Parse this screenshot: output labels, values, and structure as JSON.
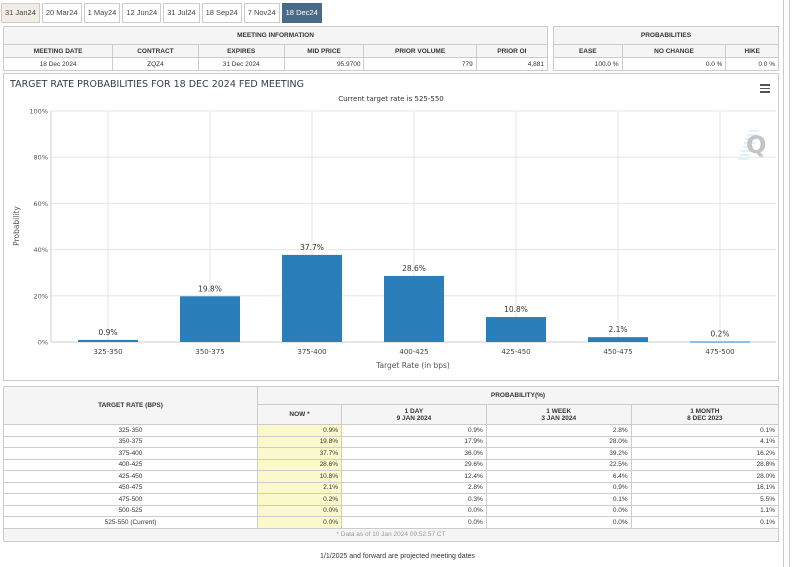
{
  "tabs": [
    "31 Jan24",
    "20 Mar24",
    "1 May24",
    "12 Jun24",
    "31 Jul24",
    "18 Sep24",
    "7 Nov24",
    "18 Dec24"
  ],
  "active_tab": "18 Dec24",
  "meeting_info": {
    "header": "MEETING INFORMATION",
    "columns": [
      "MEETING DATE",
      "CONTRACT",
      "EXPIRES",
      "MID PRICE",
      "PRIOR VOLUME",
      "PRIOR OI"
    ],
    "values": [
      "18 Dec 2024",
      "ZQZ4",
      "31 Dec 2024",
      "95.9700",
      "779",
      "4,881"
    ]
  },
  "probabilities": {
    "header": "PROBABILITIES",
    "columns": [
      "EASE",
      "NO CHANGE",
      "HIKE"
    ],
    "values": [
      "100.0 %",
      "0.0 %",
      "0.0 %"
    ]
  },
  "chart_data": {
    "type": "bar",
    "title": "TARGET RATE PROBABILITIES FOR 18 DEC 2024 FED MEETING",
    "subtitle": "Current target rate is 525-550",
    "xlabel": "Target Rate (in bps)",
    "ylabel": "Probability",
    "categories": [
      "325-350",
      "350-375",
      "375-400",
      "400-425",
      "425-450",
      "450-475",
      "475-500"
    ],
    "values": [
      0.9,
      19.8,
      37.7,
      28.6,
      10.8,
      2.1,
      0.2
    ],
    "data_labels": [
      "0.9%",
      "19.8%",
      "37.7%",
      "28.6%",
      "10.8%",
      "2.1%",
      "0.2%"
    ],
    "yticks": [
      "0%",
      "20%",
      "40%",
      "60%",
      "80%",
      "100%"
    ],
    "ylim": [
      0,
      100
    ],
    "grid": true,
    "bar_color": "#2a7fba"
  },
  "prob_table": {
    "rate_header": "TARGET RATE (BPS)",
    "group_header": "PROBABILITY(%)",
    "columns": [
      {
        "l1": "NOW *",
        "l2": ""
      },
      {
        "l1": "1 DAY",
        "l2": "9 JAN 2024"
      },
      {
        "l1": "1 WEEK",
        "l2": "3 JAN 2024"
      },
      {
        "l1": "1 MONTH",
        "l2": "8 DEC 2023"
      }
    ],
    "rows": [
      [
        "325-350",
        "0.9%",
        "0.9%",
        "2.8%",
        "0.1%"
      ],
      [
        "350-375",
        "19.8%",
        "17.9%",
        "28.0%",
        "4.1%"
      ],
      [
        "375-400",
        "37.7%",
        "36.0%",
        "39.2%",
        "16.2%"
      ],
      [
        "400-425",
        "28.6%",
        "29.6%",
        "22.5%",
        "28.8%"
      ],
      [
        "425-450",
        "10.8%",
        "12.4%",
        "6.4%",
        "28.0%"
      ],
      [
        "450-475",
        "2.1%",
        "2.8%",
        "0.9%",
        "16.1%"
      ],
      [
        "475-500",
        "0.2%",
        "0.3%",
        "0.1%",
        "5.5%"
      ],
      [
        "500-525",
        "0.0%",
        "0.0%",
        "0.0%",
        "1.1%"
      ],
      [
        "525-550 (Current)",
        "0.0%",
        "0.0%",
        "0.0%",
        "0.1%"
      ]
    ],
    "note": "* Data as of 10 Jan 2024 09:52:57 CT"
  },
  "footer": "1/1/2025 and forward are projected meeting dates"
}
